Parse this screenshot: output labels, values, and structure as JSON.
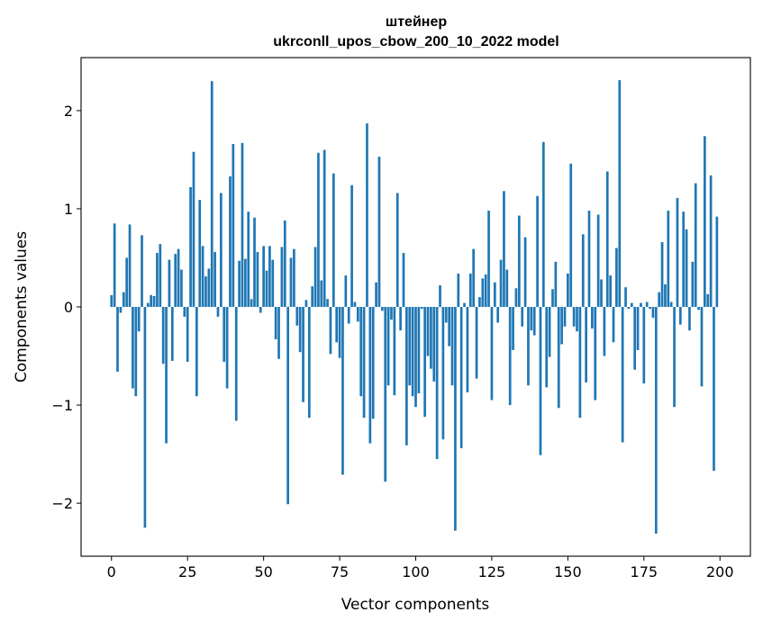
{
  "chart_data": {
    "type": "bar",
    "title": [
      "штейнер",
      "ukrconll_upos_cbow_200_10_2022 model"
    ],
    "xlabel": "Vector components",
    "ylabel": "Components values",
    "xlim": [
      -10,
      210
    ],
    "ylim": [
      -2.54,
      2.54
    ],
    "xticks": [
      0,
      25,
      50,
      75,
      100,
      125,
      150,
      175,
      200
    ],
    "yticks": [
      -2,
      -1,
      0,
      1,
      2
    ],
    "ytick_labels": [
      "−2",
      "−1",
      "0",
      "1",
      "2"
    ],
    "grid": false,
    "bar_color": "#1f77b4",
    "values": [
      0.12,
      0.85,
      -0.66,
      -0.06,
      0.15,
      0.5,
      0.84,
      -0.83,
      -0.91,
      -0.25,
      0.73,
      -2.25,
      0.04,
      0.12,
      0.11,
      0.55,
      0.64,
      -0.58,
      -1.39,
      0.48,
      -0.55,
      0.54,
      0.59,
      0.38,
      -0.1,
      -0.56,
      1.22,
      1.58,
      -0.91,
      1.09,
      0.62,
      0.31,
      0.39,
      2.3,
      0.56,
      -0.1,
      1.16,
      -0.56,
      -0.83,
      1.33,
      1.66,
      -1.16,
      0.47,
      1.67,
      0.49,
      0.97,
      0.08,
      0.91,
      0.56,
      -0.06,
      0.62,
      0.37,
      0.62,
      0.48,
      -0.33,
      -0.53,
      0.61,
      0.88,
      -2.01,
      0.5,
      0.59,
      -0.19,
      -0.46,
      -0.97,
      0.07,
      -1.13,
      0.21,
      0.61,
      1.57,
      0.27,
      1.6,
      0.08,
      -0.48,
      1.36,
      -0.36,
      -0.52,
      -1.71,
      0.32,
      -0.17,
      1.24,
      0.05,
      -0.15,
      -0.91,
      -1.13,
      1.87,
      -1.39,
      -1.14,
      0.25,
      1.53,
      -0.04,
      -1.78,
      -0.8,
      -0.13,
      -0.9,
      1.16,
      -0.24,
      0.55,
      -1.41,
      -0.8,
      -0.91,
      -1.02,
      -0.88,
      -0.02,
      -1.12,
      -0.5,
      -0.63,
      -0.76,
      -1.55,
      0.22,
      -1.35,
      -0.16,
      -0.4,
      -0.8,
      -2.28,
      0.34,
      -1.44,
      0.04,
      -0.87,
      0.34,
      0.59,
      -0.73,
      0.1,
      0.29,
      0.33,
      0.98,
      -0.95,
      0.25,
      -0.16,
      0.48,
      1.18,
      0.38,
      -1.0,
      -0.44,
      0.19,
      0.93,
      -0.2,
      0.71,
      -0.8,
      -0.24,
      -0.29,
      1.13,
      -1.51,
      1.68,
      -0.82,
      -0.51,
      0.18,
      0.46,
      -1.03,
      -0.38,
      -0.2,
      0.34,
      1.46,
      -0.2,
      -0.25,
      -1.13,
      0.74,
      -0.77,
      0.98,
      -0.22,
      -0.95,
      0.94,
      0.28,
      -0.5,
      1.38,
      0.32,
      -0.36,
      0.6,
      2.31,
      -1.38,
      0.2,
      -0.02,
      0.04,
      -0.64,
      -0.44,
      0.04,
      -0.78,
      0.05,
      -0.02,
      -0.11,
      -2.31,
      0.15,
      0.66,
      0.23,
      0.98,
      0.05,
      -1.02,
      1.11,
      -0.18,
      0.97,
      0.79,
      -0.24,
      0.46,
      1.26,
      -0.03,
      -0.81,
      1.74,
      0.13,
      1.34,
      -1.67,
      0.92
    ]
  }
}
